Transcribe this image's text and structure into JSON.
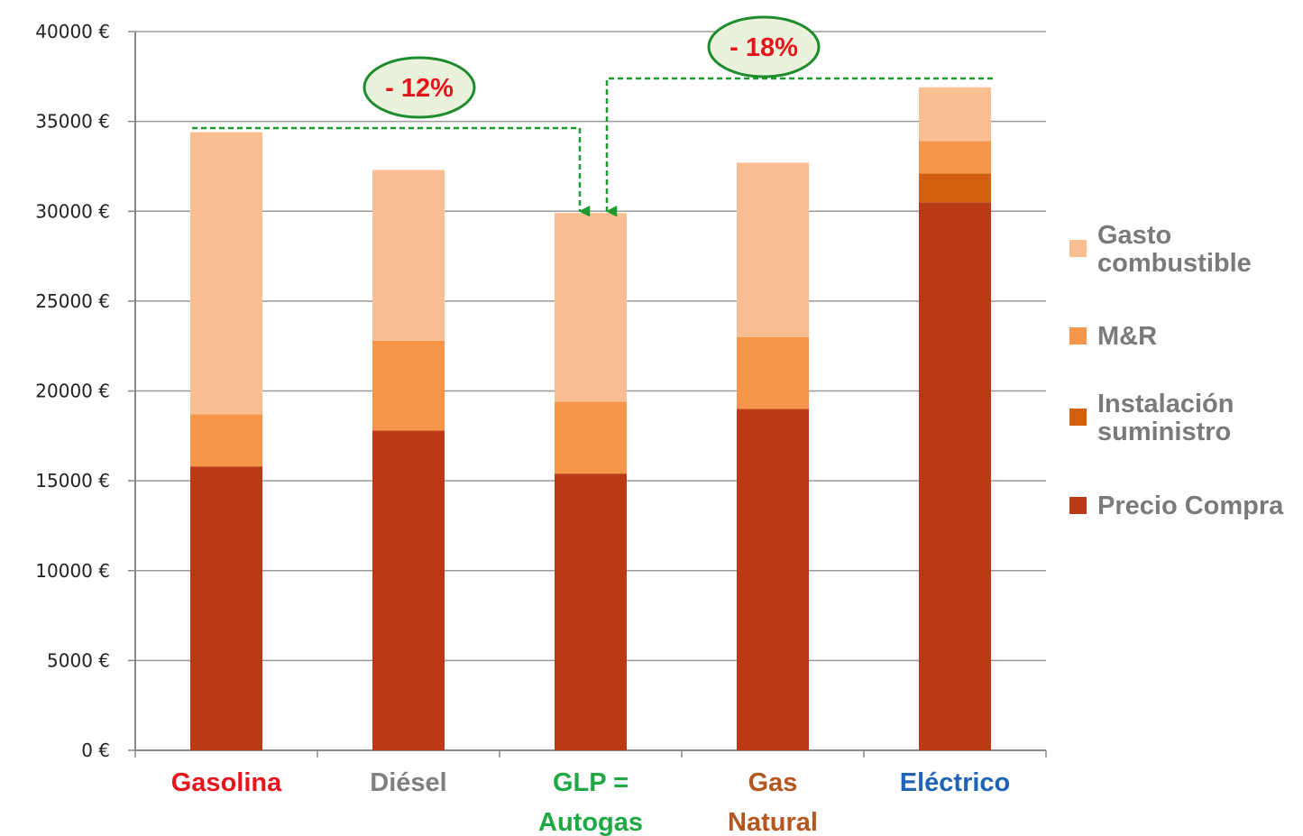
{
  "chart_data": {
    "type": "bar",
    "stacked": true,
    "categories": [
      "Gasolina",
      "Diésel",
      "GLP = Autogas",
      "Gas Natural",
      "Eléctrico"
    ],
    "category_colors": [
      "#e8141c",
      "#7f7f7f",
      "#1fa843",
      "#b5561e",
      "#1f63b5"
    ],
    "series": [
      {
        "name": "Precio Compra",
        "color": "#bb3a16",
        "values": [
          15800,
          17800,
          15400,
          19000,
          30500
        ]
      },
      {
        "name": "Instalación suministro",
        "color": "#d35f0f",
        "values": [
          0,
          0,
          0,
          0,
          1600
        ]
      },
      {
        "name": "M&R",
        "color": "#f5964a",
        "values": [
          2900,
          5000,
          4000,
          4000,
          1800
        ]
      },
      {
        "name": "Gasto combustible",
        "color": "#f9bf93",
        "values": [
          15700,
          9500,
          10500,
          9700,
          3000
        ]
      }
    ],
    "ylim": [
      0,
      40000
    ],
    "yticks": [
      0,
      5000,
      10000,
      15000,
      20000,
      25000,
      30000,
      35000,
      40000
    ],
    "ytick_labels": [
      "0 €",
      "5000 €",
      "10000 €",
      "15000 €",
      "20000 €",
      "25000 €",
      "30000 €",
      "35000 €",
      "40000 €"
    ],
    "grid": true,
    "legend_position": "right",
    "annotations": [
      {
        "label": "- 12%",
        "from": "Gasolina",
        "to": "GLP = Autogas"
      },
      {
        "label": "- 18%",
        "from": "Eléctrico",
        "to": "GLP = Autogas"
      }
    ],
    "annotation_colors": {
      "text": "#e8141c",
      "fill": "#eaf2dc",
      "border": "#1e8c2d",
      "arrow": "#1e9b2e"
    }
  }
}
